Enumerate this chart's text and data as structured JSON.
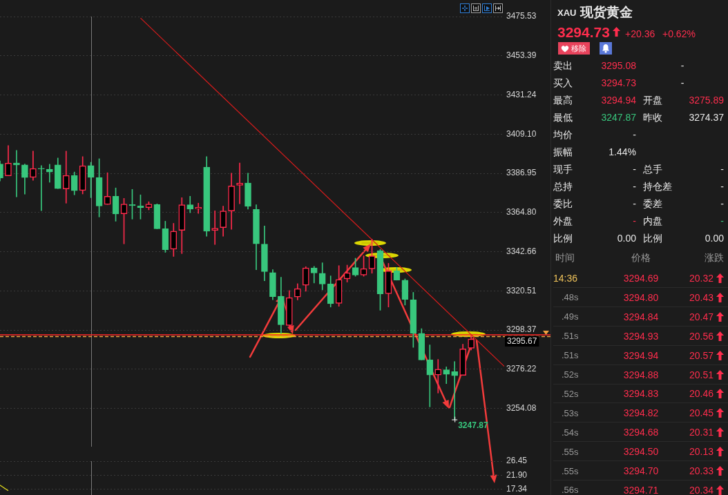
{
  "chart_data": [
    {
      "type": "candlestick",
      "categories": [
        null,
        null,
        null,
        null,
        null,
        null,
        null,
        null,
        null,
        null,
        null,
        null,
        null,
        null,
        null,
        null,
        null,
        null,
        null,
        null,
        null,
        null,
        null,
        null,
        null,
        null,
        null,
        null,
        null,
        null,
        null,
        null,
        null,
        null,
        null,
        null,
        null,
        null,
        null,
        null,
        null,
        null,
        null,
        null,
        null,
        null,
        null,
        null,
        null,
        null,
        null,
        null,
        null,
        null,
        null,
        null,
        null,
        null,
        null,
        null,
        null,
        null
      ],
      "ohlc": [
        [
          3392.2,
          3394.0,
          3382.6,
          3384.3
        ],
        [
          3385.5,
          3402.6,
          3385.5,
          3392.7
        ],
        [
          3392.8,
          3399.9,
          3373.6,
          3391.7
        ],
        [
          3391.7,
          3392.2,
          3375.2,
          3384.6
        ],
        [
          3384.7,
          3399.5,
          3383.0,
          3389.7
        ],
        [
          3389.8,
          3391.3,
          3365.8,
          3389.4
        ],
        [
          3389.3,
          3392.1,
          3381.9,
          3387.7
        ],
        [
          3391.7,
          3395.6,
          3378.3,
          3378.3
        ],
        [
          3378.1,
          3399.5,
          3370.1,
          3385.8
        ],
        [
          3385.8,
          3387.7,
          3374.8,
          3377.2
        ],
        [
          3377.3,
          3396.4,
          3375.3,
          3391.2
        ],
        [
          3391.3,
          3393.2,
          3373.2,
          3384.7
        ],
        [
          3384.6,
          3395.2,
          3362.3,
          3368.5
        ],
        [
          3369.4,
          3387.3,
          3369.4,
          3374.0
        ],
        [
          3374.0,
          3378.7,
          3359.9,
          3364.0
        ],
        [
          3364.1,
          3372.8,
          3347.1,
          3369.6
        ],
        [
          3369.3,
          3377.9,
          3361.1,
          3368.7
        ],
        [
          3368.5,
          3374.8,
          3361.1,
          3367.5
        ],
        [
          3367.6,
          3370.9,
          3366.3,
          3369.6
        ],
        [
          3369.3,
          3369.7,
          3355.6,
          3355.6
        ],
        [
          3355.6,
          3359.9,
          3342.3,
          3343.8
        ],
        [
          3344.1,
          3358.7,
          3340.0,
          3354.3
        ],
        [
          3354.7,
          3373.2,
          3341.6,
          3369.2
        ],
        [
          3369.2,
          3374.0,
          3364.7,
          3366.7
        ],
        [
          3366.9,
          3370.1,
          3364.3,
          3367.8
        ],
        [
          3390.5,
          3396.4,
          3351.4,
          3354.2
        ],
        [
          3354.7,
          3365.8,
          3346.7,
          3355.9
        ],
        [
          3356.3,
          3368.4,
          3351.4,
          3365.7
        ],
        [
          3365.7,
          3387.0,
          3355.3,
          3379.8
        ],
        [
          3380.2,
          3392.8,
          3369.7,
          3381.4
        ],
        [
          3381.5,
          3387.0,
          3366.7,
          3368.3
        ],
        [
          3366.6,
          3369.2,
          3332.5,
          3347.1
        ],
        [
          3347.0,
          3357.2,
          3326.3,
          3331.4
        ],
        [
          3330.9,
          3332.5,
          3315.5,
          3317.3
        ],
        [
          3317.5,
          3328.2,
          3296.4,
          3301.4
        ],
        [
          3301.0,
          3320.7,
          3299.2,
          3316.7
        ],
        [
          3317.1,
          3324.6,
          3315.4,
          3321.8
        ],
        [
          3323.7,
          3334.2,
          3320.3,
          3333.5
        ],
        [
          3333.5,
          3334.4,
          3325.0,
          3330.6
        ],
        [
          3330.5,
          3336.4,
          3321.1,
          3324.4
        ],
        [
          3324.4,
          3329.0,
          3311.4,
          3313.3
        ],
        [
          3313.5,
          3334.8,
          3311.8,
          3327.0
        ],
        [
          3327.3,
          3335.1,
          3325.5,
          3330.8
        ],
        [
          3333.7,
          3339.0,
          3328.8,
          3329.5
        ],
        [
          3329.5,
          3340.3,
          3328.8,
          3333.1
        ],
        [
          3333.0,
          3349.7,
          3330.5,
          3340.3
        ],
        [
          3343.3,
          3344.0,
          3309.6,
          3318.8
        ],
        [
          3318.9,
          3336.1,
          3311.4,
          3331.8
        ],
        [
          3331.8,
          3333.8,
          3326.6,
          3326.6
        ],
        [
          3326.6,
          3327.3,
          3312.5,
          3315.7
        ],
        [
          3315.5,
          3319.7,
          3288.6,
          3296.5
        ],
        [
          3296.5,
          3299.2,
          3281.5,
          3281.5
        ],
        [
          3281.5,
          3290.0,
          3255.0,
          3273.0
        ],
        [
          3273.0,
          3281.8,
          3262.8,
          3276.3
        ],
        [
          3276.0,
          3277.6,
          3268.1,
          3273.4
        ],
        [
          3274.9,
          3280.6,
          3247.87,
          3272.6
        ],
        [
          3272.8,
          3290.4,
          3272.8,
          3287.8
        ],
        [
          3288.1,
          3295.2,
          3287.1,
          3293.3
        ],
        null,
        null,
        null,
        null
      ],
      "colors": [
        "#38c77d",
        "#ff2a4b",
        "#38c77d",
        "#38c77d",
        "#ff2a4b",
        "#38c77d",
        "#38c77d",
        "#38c77d",
        "#ff2a4b",
        "#38c77d",
        "#ff2a4b",
        "#38c77d",
        "#38c77d",
        "#ff2a4b",
        "#38c77d",
        "#ff2a4b",
        "#38c77d",
        "#38c77d",
        "#ff2a4b",
        "#38c77d",
        "#38c77d",
        "#ff2a4b",
        "#ff2a4b",
        "#38c77d",
        "#ff2a4b",
        "#38c77d",
        "#ff2a4b",
        "#ff2a4b",
        "#ff2a4b",
        "#ff2a4b",
        "#38c77d",
        "#38c77d",
        "#38c77d",
        "#38c77d",
        "#38c77d",
        "#ff2a4b",
        "#ff2a4b",
        "#ff2a4b",
        "#38c77d",
        "#38c77d",
        "#38c77d",
        "#ff2a4b",
        "#ff2a4b",
        "#38c77d",
        "#ff2a4b",
        "#ff2a4b",
        "#38c77d",
        "#ff2a4b",
        "#38c77d",
        "#38c77d",
        "#38c77d",
        "#38c77d",
        "#38c77d",
        "#ff2a4b",
        "#38c77d",
        "#38c77d",
        "#ff2a4b",
        "#ff2a4b",
        null,
        null,
        null,
        null
      ],
      "series": [
        {
          "type": "line",
          "color": "#d81c1c",
          "values": [
            null,
            null,
            null,
            null,
            null,
            null,
            null,
            null,
            null,
            null,
            null,
            null,
            null,
            null,
            null,
            null,
            null,
            3474.7,
            null,
            null,
            null,
            null,
            null,
            null,
            null,
            null,
            null,
            null,
            null,
            null,
            null,
            null,
            null,
            null,
            null,
            null,
            null,
            null,
            null,
            null,
            null,
            null,
            null,
            null,
            null,
            null,
            null,
            null,
            null,
            null,
            null,
            null,
            null,
            null,
            null,
            null,
            null,
            null,
            null,
            null,
            null,
            3277.9
          ]
        }
      ],
      "ylim": [
        3232.5,
        3475.53
      ],
      "yticks": [
        3254.08,
        3276.22,
        3298.37,
        3320.51,
        3342.66,
        {
          "value": 3364.8,
          "label": "3364.80"
        },
        3386.95,
        {
          "value": 3409.1,
          "label": "3409.10"
        },
        3431.24,
        3453.39,
        3475.53
      ],
      "grid": "y",
      "tick_labels": "y",
      "ref_lines": [
        {
          "axis": "y",
          "value": 3295.67,
          "label": "3295.67",
          "color": "#ff2626"
        },
        {
          "axis": "y",
          "value": 3294.73,
          "color": "#f0a040",
          "line_style": "dashed"
        }
      ],
      "annotations": [
        "3247.87"
      ]
    },
    {
      "type": "line",
      "categories": [
        null,
        null,
        null,
        null,
        null,
        null,
        null,
        null,
        null,
        null,
        null,
        null,
        null,
        null,
        null,
        null,
        null,
        null,
        null,
        null,
        null,
        null,
        null,
        null,
        null,
        null,
        null,
        null,
        null,
        null,
        null,
        null,
        null,
        null,
        null,
        null,
        null,
        null,
        null,
        null,
        null,
        null,
        null,
        null,
        null,
        null,
        null,
        null,
        null,
        null,
        null,
        null,
        null,
        null,
        null,
        null,
        null,
        null,
        null,
        null,
        null,
        null
      ],
      "series": [
        {
          "color": "#e8e01c",
          "values": [
            18.7,
            16.9,
            null,
            null,
            null,
            null,
            null,
            null,
            null,
            null,
            null,
            null,
            null,
            null,
            null,
            null,
            null,
            null,
            null,
            null,
            null,
            null,
            null,
            null,
            null,
            null,
            null,
            null,
            null,
            null,
            null,
            null,
            null,
            null,
            null,
            null,
            null,
            null,
            null,
            null,
            null,
            null,
            null,
            null,
            null,
            null,
            null,
            null,
            null,
            null,
            null,
            null,
            null,
            null,
            null,
            null,
            null,
            null,
            null,
            null,
            null,
            null
          ]
        }
      ],
      "ylim": [
        15.5,
        26.45
      ],
      "yticks": [
        17.34,
        {
          "value": 21.9,
          "label": "21.90"
        },
        26.45
      ],
      "grid": "y",
      "tick_labels": "y"
    },
    {
      "type": "other",
      "title": "XAU",
      "subtitle": "现货黄金",
      "annotations": [
        "3294.73",
        "+20.36",
        "+0.62%",
        "移除",
        "卖出",
        "3295.08",
        "-",
        "买入",
        "3294.73",
        "-",
        "最高",
        "3294.94",
        "开盘",
        "3275.89",
        "最低",
        "3247.87",
        "昨收",
        "3274.37",
        "均价",
        "-",
        "振幅",
        "1.44%",
        "现手",
        "-",
        "总手",
        "-",
        "总持",
        "-",
        "持仓差",
        "-",
        "委比",
        "-",
        "委差",
        "-",
        "外盘",
        "-",
        "内盘",
        "-",
        "比例",
        "0.00",
        "比例",
        "0.00",
        "时间",
        "价格",
        "涨跌",
        "14:36",
        "3294.69",
        "20.32",
        ".48s",
        "3294.80",
        "20.43",
        ".49s",
        "3294.84",
        "20.47",
        ".51s",
        "3294.93",
        "20.56",
        ".51s",
        "3294.94",
        "20.57",
        ".52s",
        "3294.88",
        "20.51",
        ".52s",
        "3294.83",
        "20.46",
        ".53s",
        "3294.82",
        "20.45",
        ".54s",
        "3294.68",
        "20.31",
        ".55s",
        "3294.50",
        "20.13",
        ".55s",
        "3294.70",
        "20.33",
        ".56s",
        "3294.71",
        "20.34"
      ]
    }
  ]
}
